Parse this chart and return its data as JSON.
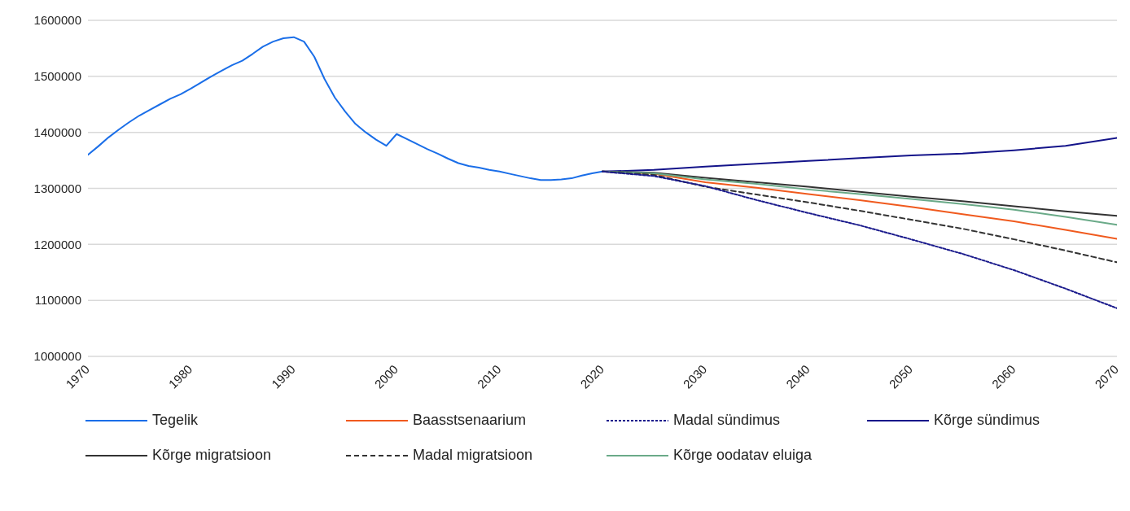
{
  "chart_data": {
    "type": "line",
    "xlim": [
      1970,
      2070
    ],
    "xticks": [
      1970,
      1980,
      1990,
      2000,
      2010,
      2020,
      2030,
      2040,
      2050,
      2060,
      2070
    ],
    "ylim": [
      1000000,
      1600000
    ],
    "yticks": [
      1000000,
      1100000,
      1200000,
      1300000,
      1400000,
      1500000,
      1600000
    ],
    "grid": "y",
    "legend": "bottom",
    "marker": "none",
    "series": [
      {
        "name": "Tegelik",
        "color": "#1a6ee8",
        "line_style": "solid",
        "x": [
          1970,
          1971,
          1972,
          1973,
          1974,
          1975,
          1976,
          1977,
          1978,
          1979,
          1980,
          1981,
          1982,
          1983,
          1984,
          1985,
          1986,
          1987,
          1988,
          1989,
          1990,
          1991,
          1992,
          1993,
          1994,
          1995,
          1996,
          1997,
          1998,
          1999,
          2000,
          2001,
          2002,
          2003,
          2004,
          2005,
          2006,
          2007,
          2008,
          2009,
          2010,
          2011,
          2012,
          2013,
          2014,
          2015,
          2016,
          2017,
          2018,
          2019,
          2020
        ],
        "values": [
          1360000,
          1375000,
          1391000,
          1405000,
          1418000,
          1430000,
          1440000,
          1450000,
          1460000,
          1468000,
          1478000,
          1489000,
          1500000,
          1510000,
          1520000,
          1528000,
          1540000,
          1553000,
          1562000,
          1568000,
          1570000,
          1562000,
          1535000,
          1495000,
          1462000,
          1437000,
          1415000,
          1400000,
          1387000,
          1376000,
          1397000,
          1388000,
          1379000,
          1370000,
          1362000,
          1353000,
          1345000,
          1340000,
          1337000,
          1333000,
          1330000,
          1326000,
          1322000,
          1318000,
          1315000,
          1315000,
          1316000,
          1318000,
          1323000,
          1327000,
          1330000
        ]
      },
      {
        "name": "Baasstsenaarium",
        "color": "#f05a1e",
        "line_style": "solid",
        "x": [
          2020,
          2025,
          2030,
          2035,
          2040,
          2045,
          2050,
          2055,
          2060,
          2065,
          2070
        ],
        "values": [
          1330000,
          1326000,
          1311000,
          1301000,
          1290000,
          1279000,
          1267000,
          1254000,
          1241000,
          1226000,
          1210000
        ]
      },
      {
        "name": "Madal sündimus",
        "color": "#1a1a8c",
        "line_style": "dotted",
        "x": [
          2020,
          2025,
          2030,
          2035,
          2040,
          2045,
          2050,
          2055,
          2060,
          2065,
          2070
        ],
        "values": [
          1330000,
          1322000,
          1304000,
          1279000,
          1256000,
          1234000,
          1209000,
          1183000,
          1154000,
          1121000,
          1086000
        ]
      },
      {
        "name": "Kõrge sündimus",
        "color": "#14148a",
        "line_style": "solid",
        "x": [
          2020,
          2025,
          2030,
          2035,
          2040,
          2045,
          2050,
          2055,
          2060,
          2065,
          2070
        ],
        "values": [
          1330000,
          1333000,
          1339000,
          1344000,
          1349000,
          1354000,
          1359000,
          1362000,
          1368000,
          1376000,
          1390000
        ]
      },
      {
        "name": "Kõrge migratsioon",
        "color": "#333333",
        "line_style": "solid",
        "x": [
          2020,
          2025,
          2030,
          2035,
          2040,
          2045,
          2050,
          2055,
          2060,
          2065,
          2070
        ],
        "values": [
          1330000,
          1328000,
          1319000,
          1311000,
          1303000,
          1294000,
          1285000,
          1277000,
          1268000,
          1259000,
          1251000
        ]
      },
      {
        "name": "Madal migratsioon",
        "color": "#333333",
        "line_style": "dashed",
        "x": [
          2020,
          2025,
          2030,
          2035,
          2040,
          2045,
          2050,
          2055,
          2060,
          2065,
          2070
        ],
        "values": [
          1330000,
          1324000,
          1303000,
          1289000,
          1275000,
          1260000,
          1244000,
          1228000,
          1209000,
          1189000,
          1168000
        ]
      },
      {
        "name": "Kõrge oodatav eluiga",
        "color": "#6aaa88",
        "line_style": "solid",
        "x": [
          2020,
          2025,
          2030,
          2035,
          2040,
          2045,
          2050,
          2055,
          2060,
          2065,
          2070
        ],
        "values": [
          1330000,
          1327000,
          1316000,
          1308000,
          1298000,
          1290000,
          1281000,
          1272000,
          1262000,
          1249000,
          1235000
        ]
      }
    ]
  }
}
